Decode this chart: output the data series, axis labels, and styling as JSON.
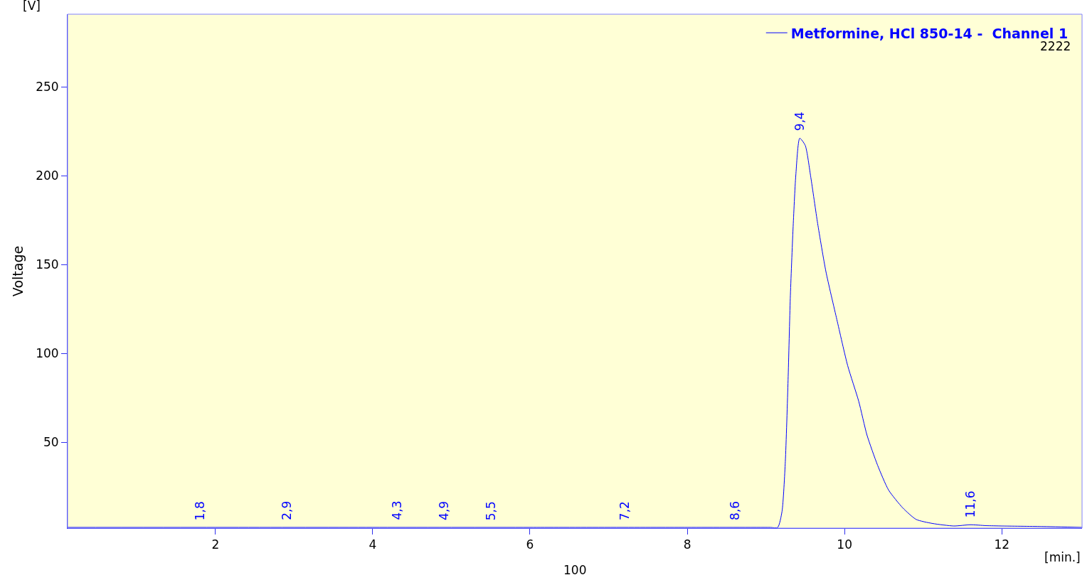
{
  "chart_data": {
    "type": "line",
    "xlabel": "[min.]",
    "ylabel": "Voltage",
    "xlim": [
      0.12,
      13.02
    ],
    "ylim": [
      1.6,
      290.8
    ],
    "xticks": [
      2,
      4,
      6,
      8,
      10,
      12
    ],
    "yticks": [
      50,
      100,
      150,
      200,
      250
    ],
    "grid": false,
    "legend": "top right",
    "marker": "none",
    "line_style": "solid",
    "series": [
      {
        "name": "Metformine, HCl 850-14 -  Channel 1",
        "color": "#0000ff",
        "x": [
          0.12,
          2,
          4,
          6,
          8,
          9.05,
          9.15,
          9.205,
          9.247,
          9.282,
          9.31,
          9.345,
          9.38,
          9.43,
          9.5,
          9.571,
          9.658,
          9.763,
          9.902,
          10.04,
          10.18,
          10.285,
          10.42,
          10.56,
          10.74,
          10.91,
          11.12,
          11.39,
          11.6,
          11.8,
          12,
          12.5,
          13.02
        ],
        "values": [
          2,
          2,
          2,
          2,
          2,
          2,
          2,
          11,
          39,
          85,
          131,
          170,
          200,
          221,
          217,
          199,
          173,
          146,
          119,
          93,
          73,
          54,
          37,
          23,
          13,
          6.5,
          4.2,
          2.8,
          3.5,
          3,
          2.8,
          2.5,
          2
        ]
      }
    ],
    "annotations": [
      {
        "text": "1,8",
        "x": 1.8,
        "y": 2
      },
      {
        "text": "2,9",
        "x": 2.9,
        "y": 2
      },
      {
        "text": "4,3",
        "x": 4.3,
        "y": 2
      },
      {
        "text": "4,9",
        "x": 4.9,
        "y": 2
      },
      {
        "text": "5,5",
        "x": 5.5,
        "y": 2
      },
      {
        "text": "7,2",
        "x": 7.2,
        "y": 2
      },
      {
        "text": "8,6",
        "x": 8.6,
        "y": 2
      },
      {
        "text": "9,4",
        "x": 9.43,
        "y": 221
      },
      {
        "text": "11,6",
        "x": 11.6,
        "y": 3.5
      },
      "[V]",
      "2222",
      "100"
    ]
  }
}
